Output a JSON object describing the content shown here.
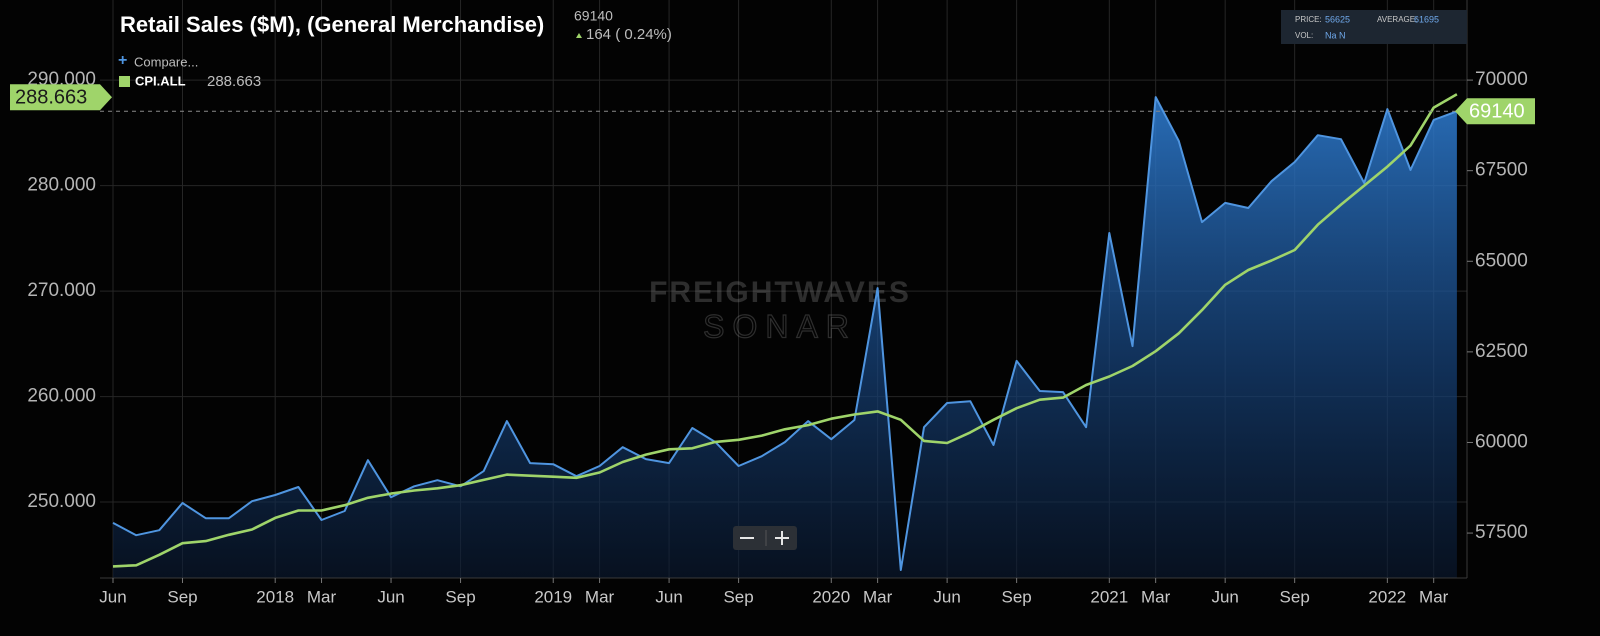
{
  "chart_data": {
    "type": "line",
    "title": "Retail Sales ($M), (General Merchandise)",
    "last_value": 69140,
    "change": "164 ( 0.24%)",
    "compare": "Compare...",
    "watermark": {
      "brand": "FREIGHTWAVES",
      "product": "SONAR"
    },
    "info": {
      "price_label": "PRICE:",
      "price": 56625,
      "average_label": "AVERAGE:",
      "average": 61695,
      "vol_label": "VOL:",
      "vol": "Na N"
    },
    "x": [
      "2017-06",
      "2017-07",
      "2017-08",
      "2017-09",
      "2017-10",
      "2017-11",
      "2017-12",
      "2018-01",
      "2018-02",
      "2018-03",
      "2018-04",
      "2018-05",
      "2018-06",
      "2018-07",
      "2018-08",
      "2018-09",
      "2018-10",
      "2018-11",
      "2018-12",
      "2019-01",
      "2019-02",
      "2019-03",
      "2019-04",
      "2019-05",
      "2019-06",
      "2019-07",
      "2019-08",
      "2019-09",
      "2019-10",
      "2019-11",
      "2019-12",
      "2020-01",
      "2020-02",
      "2020-03",
      "2020-04",
      "2020-05",
      "2020-06",
      "2020-07",
      "2020-08",
      "2020-09",
      "2020-10",
      "2020-11",
      "2020-12",
      "2021-01",
      "2021-02",
      "2021-03",
      "2021-04",
      "2021-05",
      "2021-06",
      "2021-07",
      "2021-08",
      "2021-09",
      "2021-10",
      "2021-11",
      "2021-12",
      "2022-01",
      "2022-02",
      "2022-03",
      "2022-04"
    ],
    "xticks": [
      {
        "value": "2017-06",
        "label": "Jun"
      },
      {
        "value": "2017-09",
        "label": "Sep"
      },
      {
        "value": "2018-01",
        "label": "2018"
      },
      {
        "value": "2018-03",
        "label": "Mar"
      },
      {
        "value": "2018-06",
        "label": "Jun"
      },
      {
        "value": "2018-09",
        "label": "Sep"
      },
      {
        "value": "2019-01",
        "label": "2019"
      },
      {
        "value": "2019-03",
        "label": "Mar"
      },
      {
        "value": "2019-06",
        "label": "Jun"
      },
      {
        "value": "2019-09",
        "label": "Sep"
      },
      {
        "value": "2020-01",
        "label": "2020"
      },
      {
        "value": "2020-03",
        "label": "Mar"
      },
      {
        "value": "2020-06",
        "label": "Jun"
      },
      {
        "value": "2020-09",
        "label": "Sep"
      },
      {
        "value": "2021-01",
        "label": "2021"
      },
      {
        "value": "2021-03",
        "label": "Mar"
      },
      {
        "value": "2021-06",
        "label": "Jun"
      },
      {
        "value": "2021-09",
        "label": "Sep"
      },
      {
        "value": "2022-01",
        "label": "2022"
      },
      {
        "value": "2022-03",
        "label": "Mar"
      }
    ],
    "ylim": [
      242.8,
      297.6
    ],
    "yticks": [
      {
        "value": 250,
        "label": "250.000"
      },
      {
        "value": 260,
        "label": "260.000"
      },
      {
        "value": 270,
        "label": "270.000"
      },
      {
        "value": 280,
        "label": "280.000"
      },
      {
        "value": 290,
        "label": "290.000"
      }
    ],
    "y2lim": [
      56260,
      72210
    ],
    "y2ticks": [
      57500,
      60000,
      62500,
      65000,
      67500,
      70000
    ],
    "grid": true,
    "series": [
      {
        "name": "CPI.ALL",
        "color": "#9fd46a",
        "axis": "y",
        "values": [
          243.9,
          244.0,
          245.0,
          246.1,
          246.3,
          246.9,
          247.4,
          248.5,
          249.2,
          249.2,
          249.7,
          250.4,
          250.8,
          251.1,
          251.3,
          251.6,
          252.1,
          252.6,
          252.5,
          252.4,
          252.3,
          252.8,
          253.8,
          254.5,
          255.0,
          255.1,
          255.7,
          255.9,
          256.3,
          256.9,
          257.3,
          257.9,
          258.3,
          258.6,
          257.8,
          255.8,
          255.6,
          256.6,
          257.8,
          258.9,
          259.7,
          259.9,
          261.1,
          261.9,
          262.9,
          264.3,
          266.0,
          268.2,
          270.6,
          272.0,
          272.9,
          273.9,
          276.3,
          278.2,
          280.0,
          281.8,
          283.8,
          287.4,
          288.663
        ]
      },
      {
        "name": "Retail Sales ($M), (General Merchandise)",
        "color": "#4f95e0",
        "axis": "y2",
        "area": true,
        "values": [
          57780,
          57440,
          57580,
          58330,
          57910,
          57910,
          58380,
          58550,
          58770,
          57860,
          58110,
          59510,
          58490,
          58790,
          58960,
          58790,
          59210,
          60590,
          59430,
          59400,
          59070,
          59350,
          59870,
          59540,
          59430,
          60400,
          60010,
          59350,
          59620,
          60010,
          60590,
          60090,
          60620,
          64260,
          56480,
          60420,
          61090,
          61140,
          59930,
          62250,
          61420,
          61390,
          60420,
          65780,
          62660,
          69530,
          68320,
          66080,
          66610,
          66470,
          67210,
          67740,
          68480,
          68370,
          67160,
          69200,
          67520,
          68900,
          69140
        ]
      }
    ]
  }
}
